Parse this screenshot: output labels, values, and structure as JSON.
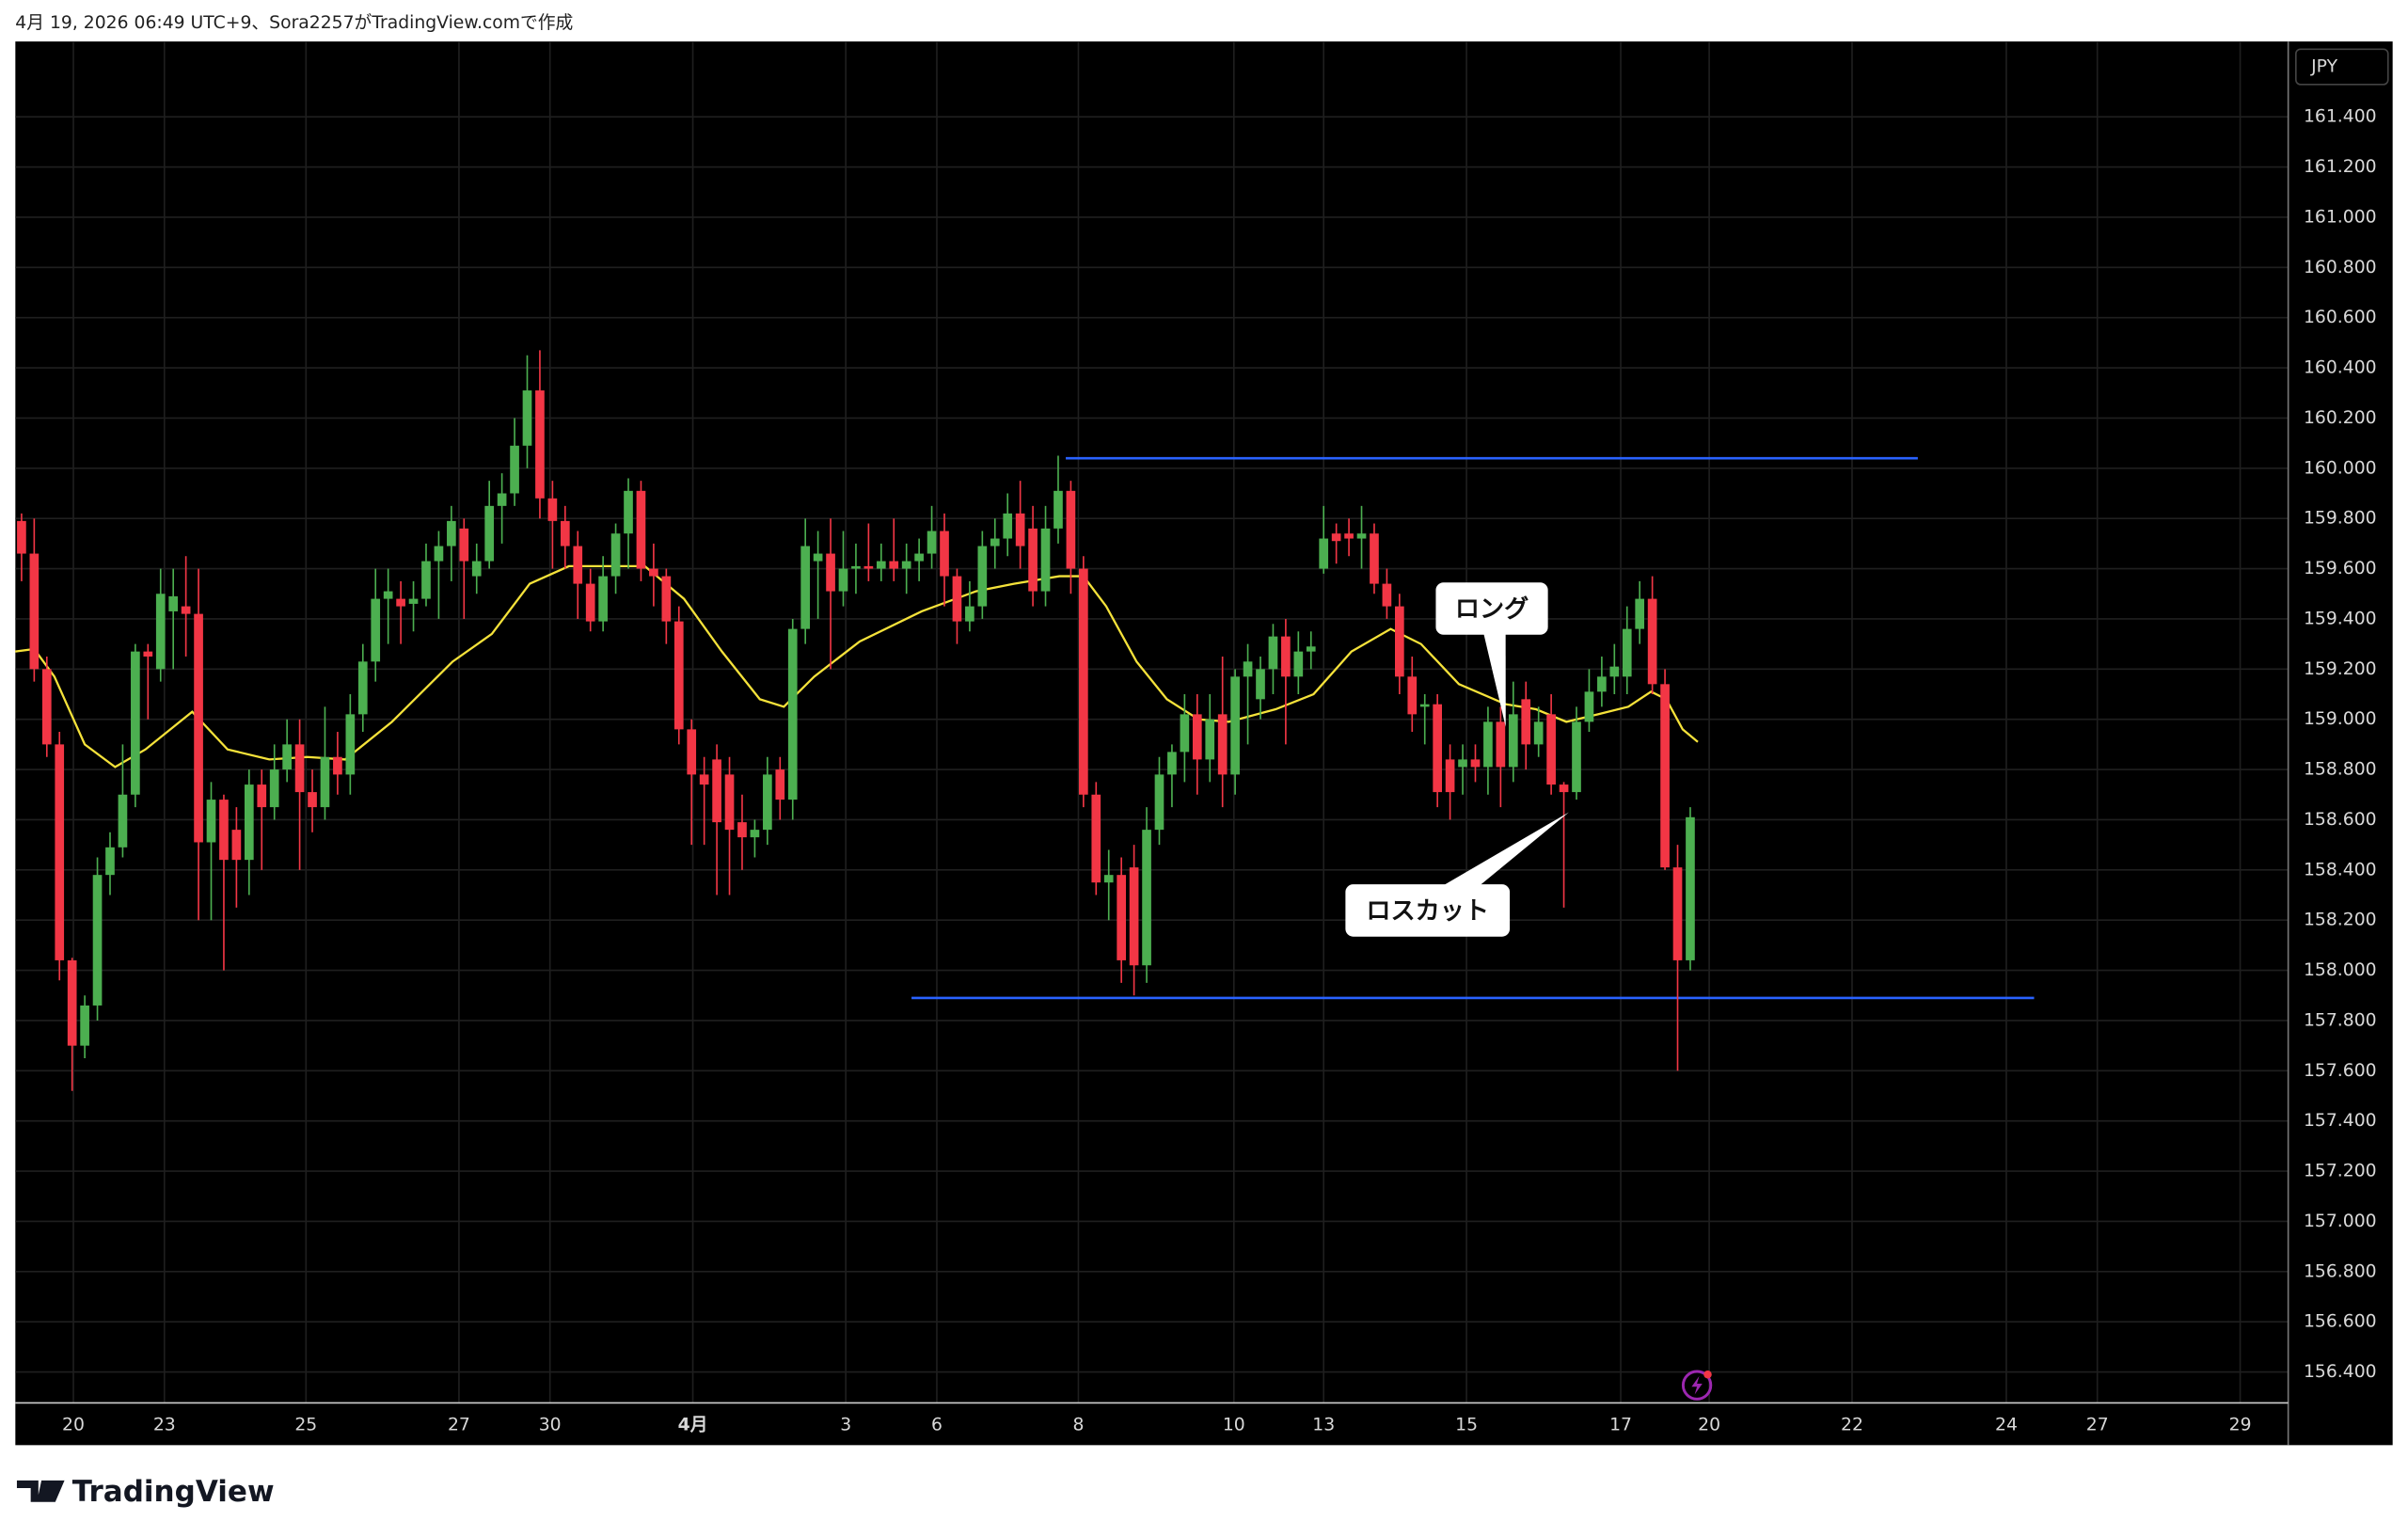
{
  "chart_data": {
    "type": "candlestick",
    "caption": "4月 19, 2026 06:49 UTC+9、Sora2257がTradingView.comで作成",
    "logo": "TradingView",
    "currency": "JPY",
    "up_color": "#4caf50",
    "down_color": "#f23645",
    "grid": true,
    "ylim": [
      156.28,
      161.7
    ],
    "yticks": [
      {
        "value": 156.4,
        "label": "156.400"
      },
      {
        "value": 156.6,
        "label": "156.600"
      },
      {
        "value": 156.8,
        "label": "156.800"
      },
      {
        "value": 157.0,
        "label": "157.000"
      },
      {
        "value": 157.2,
        "label": "157.200"
      },
      {
        "value": 157.4,
        "label": "157.400"
      },
      {
        "value": 157.6,
        "label": "157.600"
      },
      {
        "value": 157.8,
        "label": "157.800"
      },
      {
        "value": 158.0,
        "label": "158.000"
      },
      {
        "value": 158.2,
        "label": "158.200"
      },
      {
        "value": 158.4,
        "label": "158.400"
      },
      {
        "value": 158.6,
        "label": "158.600"
      },
      {
        "value": 158.8,
        "label": "158.800"
      },
      {
        "value": 159.0,
        "label": "159.000"
      },
      {
        "value": 159.2,
        "label": "159.200"
      },
      {
        "value": 159.4,
        "label": "159.400"
      },
      {
        "value": 159.6,
        "label": "159.600"
      },
      {
        "value": 159.8,
        "label": "159.800"
      },
      {
        "value": 160.0,
        "label": "160.000"
      },
      {
        "value": 160.2,
        "label": "160.200"
      },
      {
        "value": 160.4,
        "label": "160.400"
      },
      {
        "value": 160.6,
        "label": "160.600"
      },
      {
        "value": 160.8,
        "label": "160.800"
      },
      {
        "value": 161.0,
        "label": "161.000"
      },
      {
        "value": 161.2,
        "label": "161.200"
      },
      {
        "value": 161.4,
        "label": "161.400"
      }
    ],
    "xlim": [
      -0.49,
      179.3
    ],
    "xticks": [
      {
        "value": 4.1,
        "label": "20"
      },
      {
        "value": 11.3,
        "label": "23"
      },
      {
        "value": 22.5,
        "label": "25"
      },
      {
        "value": 34.6,
        "label": "27"
      },
      {
        "value": 41.8,
        "label": "30"
      },
      {
        "value": 53.1,
        "label": "4月"
      },
      {
        "value": 65.2,
        "label": "3"
      },
      {
        "value": 72.4,
        "label": "6"
      },
      {
        "value": 83.6,
        "label": "8"
      },
      {
        "value": 95.9,
        "label": "10"
      },
      {
        "value": 103.0,
        "label": "13"
      },
      {
        "value": 114.3,
        "label": "15"
      },
      {
        "value": 126.5,
        "label": "17"
      },
      {
        "value": 133.5,
        "label": "20"
      },
      {
        "value": 144.8,
        "label": "22"
      },
      {
        "value": 157.0,
        "label": "24"
      },
      {
        "value": 164.2,
        "label": "27"
      },
      {
        "value": 175.5,
        "label": "29"
      }
    ],
    "ohlc": [
      [
        159.79,
        159.82,
        159.55,
        159.66
      ],
      [
        159.66,
        159.8,
        159.15,
        159.2
      ],
      [
        159.2,
        159.25,
        158.85,
        158.9
      ],
      [
        158.9,
        158.95,
        157.96,
        158.04
      ],
      [
        158.04,
        158.05,
        157.52,
        157.7
      ],
      [
        157.7,
        157.9,
        157.65,
        157.86
      ],
      [
        157.86,
        158.45,
        157.8,
        158.38
      ],
      [
        158.38,
        158.55,
        158.3,
        158.49
      ],
      [
        158.49,
        158.9,
        158.45,
        158.7
      ],
      [
        158.7,
        159.3,
        158.65,
        159.27
      ],
      [
        159.27,
        159.3,
        159.0,
        159.25
      ],
      [
        159.2,
        159.6,
        159.15,
        159.5
      ],
      [
        159.43,
        159.6,
        159.2,
        159.49
      ],
      [
        159.45,
        159.65,
        159.25,
        159.42
      ],
      [
        159.42,
        159.6,
        158.2,
        158.51
      ],
      [
        158.51,
        158.75,
        158.2,
        158.68
      ],
      [
        158.68,
        158.7,
        158.0,
        158.44
      ],
      [
        158.56,
        158.65,
        158.25,
        158.44
      ],
      [
        158.44,
        158.8,
        158.3,
        158.74
      ],
      [
        158.74,
        158.8,
        158.4,
        158.65
      ],
      [
        158.65,
        158.9,
        158.6,
        158.8
      ],
      [
        158.8,
        159.0,
        158.75,
        158.9
      ],
      [
        158.9,
        159.0,
        158.4,
        158.71
      ],
      [
        158.71,
        158.8,
        158.55,
        158.65
      ],
      [
        158.65,
        159.05,
        158.6,
        158.85
      ],
      [
        158.85,
        158.95,
        158.7,
        158.78
      ],
      [
        158.78,
        159.1,
        158.7,
        159.02
      ],
      [
        159.02,
        159.3,
        158.95,
        159.23
      ],
      [
        159.23,
        159.6,
        159.15,
        159.48
      ],
      [
        159.48,
        159.6,
        159.3,
        159.51
      ],
      [
        159.48,
        159.55,
        159.3,
        159.45
      ],
      [
        159.46,
        159.55,
        159.35,
        159.48
      ],
      [
        159.48,
        159.7,
        159.45,
        159.63
      ],
      [
        159.63,
        159.75,
        159.4,
        159.69
      ],
      [
        159.69,
        159.85,
        159.55,
        159.79
      ],
      [
        159.76,
        159.8,
        159.4,
        159.63
      ],
      [
        159.57,
        159.7,
        159.5,
        159.63
      ],
      [
        159.63,
        159.95,
        159.6,
        159.85
      ],
      [
        159.85,
        159.98,
        159.7,
        159.9
      ],
      [
        159.9,
        160.2,
        159.85,
        160.09
      ],
      [
        160.09,
        160.45,
        160.0,
        160.31
      ],
      [
        160.31,
        160.47,
        159.8,
        159.88
      ],
      [
        159.88,
        159.95,
        159.6,
        159.79
      ],
      [
        159.79,
        159.85,
        159.6,
        159.69
      ],
      [
        159.69,
        159.75,
        159.4,
        159.54
      ],
      [
        159.54,
        159.6,
        159.35,
        159.39
      ],
      [
        159.39,
        159.65,
        159.35,
        159.57
      ],
      [
        159.57,
        159.78,
        159.5,
        159.74
      ],
      [
        159.74,
        159.96,
        159.6,
        159.91
      ],
      [
        159.91,
        159.95,
        159.55,
        159.6
      ],
      [
        159.6,
        159.7,
        159.45,
        159.57
      ],
      [
        159.57,
        159.6,
        159.3,
        159.39
      ],
      [
        159.39,
        159.45,
        158.9,
        158.96
      ],
      [
        158.96,
        159.0,
        158.5,
        158.78
      ],
      [
        158.78,
        158.85,
        158.5,
        158.74
      ],
      [
        158.84,
        158.9,
        158.3,
        158.59
      ],
      [
        158.78,
        158.85,
        158.3,
        158.56
      ],
      [
        158.59,
        158.7,
        158.4,
        158.53
      ],
      [
        158.53,
        158.6,
        158.45,
        158.56
      ],
      [
        158.56,
        158.85,
        158.5,
        158.78
      ],
      [
        158.8,
        158.85,
        158.6,
        158.68
      ],
      [
        158.68,
        159.4,
        158.6,
        159.36
      ],
      [
        159.36,
        159.8,
        159.3,
        159.69
      ],
      [
        159.63,
        159.75,
        159.4,
        159.66
      ],
      [
        159.66,
        159.8,
        159.2,
        159.51
      ],
      [
        159.51,
        159.75,
        159.45,
        159.6
      ],
      [
        159.6,
        159.7,
        159.5,
        159.61
      ],
      [
        159.61,
        159.78,
        159.55,
        159.6
      ],
      [
        159.6,
        159.7,
        159.55,
        159.63
      ],
      [
        159.63,
        159.8,
        159.55,
        159.6
      ],
      [
        159.6,
        159.7,
        159.5,
        159.63
      ],
      [
        159.63,
        159.72,
        159.55,
        159.66
      ],
      [
        159.66,
        159.85,
        159.6,
        159.75
      ],
      [
        159.75,
        159.82,
        159.45,
        159.57
      ],
      [
        159.57,
        159.6,
        159.3,
        159.39
      ],
      [
        159.39,
        159.55,
        159.35,
        159.45
      ],
      [
        159.45,
        159.75,
        159.4,
        159.69
      ],
      [
        159.69,
        159.8,
        159.6,
        159.72
      ],
      [
        159.72,
        159.9,
        159.65,
        159.82
      ],
      [
        159.82,
        159.95,
        159.6,
        159.69
      ],
      [
        159.76,
        159.85,
        159.45,
        159.51
      ],
      [
        159.51,
        159.85,
        159.45,
        159.76
      ],
      [
        159.76,
        160.05,
        159.7,
        159.91
      ],
      [
        159.91,
        159.95,
        159.5,
        159.6
      ],
      [
        159.6,
        159.65,
        158.65,
        158.7
      ],
      [
        158.7,
        158.75,
        158.3,
        158.35
      ],
      [
        158.35,
        158.48,
        158.2,
        158.38
      ],
      [
        158.38,
        158.45,
        157.95,
        158.04
      ],
      [
        158.41,
        158.5,
        157.9,
        158.02
      ],
      [
        158.02,
        158.65,
        157.95,
        158.56
      ],
      [
        158.56,
        158.85,
        158.5,
        158.78
      ],
      [
        158.78,
        158.9,
        158.65,
        158.87
      ],
      [
        158.87,
        159.1,
        158.75,
        159.02
      ],
      [
        159.02,
        159.1,
        158.7,
        158.84
      ],
      [
        158.84,
        159.1,
        158.75,
        159.0
      ],
      [
        159.02,
        159.25,
        158.65,
        158.78
      ],
      [
        158.78,
        159.2,
        158.7,
        159.17
      ],
      [
        159.17,
        159.3,
        158.9,
        159.23
      ],
      [
        159.08,
        159.25,
        159.0,
        159.2
      ],
      [
        159.2,
        159.38,
        159.1,
        159.33
      ],
      [
        159.33,
        159.4,
        158.9,
        159.17
      ],
      [
        159.17,
        159.35,
        159.1,
        159.27
      ],
      [
        159.27,
        159.35,
        159.2,
        159.29
      ],
      [
        159.6,
        159.85,
        159.58,
        159.72
      ],
      [
        159.74,
        159.78,
        159.62,
        159.71
      ],
      [
        159.74,
        159.8,
        159.65,
        159.72
      ],
      [
        159.72,
        159.85,
        159.6,
        159.74
      ],
      [
        159.74,
        159.78,
        159.5,
        159.54
      ],
      [
        159.54,
        159.6,
        159.4,
        159.45
      ],
      [
        159.45,
        159.5,
        159.1,
        159.17
      ],
      [
        159.17,
        159.25,
        158.95,
        159.02
      ],
      [
        159.05,
        159.1,
        158.9,
        159.06
      ],
      [
        159.06,
        159.1,
        158.65,
        158.71
      ],
      [
        158.84,
        158.9,
        158.6,
        158.71
      ],
      [
        158.81,
        158.9,
        158.7,
        158.84
      ],
      [
        158.84,
        158.9,
        158.75,
        158.81
      ],
      [
        158.81,
        159.05,
        158.7,
        158.99
      ],
      [
        158.99,
        159.05,
        158.65,
        158.81
      ],
      [
        158.81,
        159.15,
        158.75,
        159.02
      ],
      [
        159.08,
        159.15,
        158.8,
        158.9
      ],
      [
        158.9,
        159.05,
        158.85,
        158.99
      ],
      [
        159.02,
        159.1,
        158.7,
        158.74
      ],
      [
        158.74,
        158.75,
        158.25,
        158.71
      ],
      [
        158.71,
        159.05,
        158.68,
        158.99
      ],
      [
        158.99,
        159.2,
        158.95,
        159.11
      ],
      [
        159.11,
        159.25,
        159.05,
        159.17
      ],
      [
        159.17,
        159.3,
        159.1,
        159.21
      ],
      [
        159.17,
        159.45,
        159.1,
        159.36
      ],
      [
        159.36,
        159.55,
        159.3,
        159.48
      ],
      [
        159.48,
        159.57,
        159.1,
        159.14
      ],
      [
        159.14,
        159.2,
        158.4,
        158.41
      ],
      [
        158.41,
        158.5,
        157.6,
        158.04
      ],
      [
        158.04,
        158.65,
        158.0,
        158.61
      ]
    ],
    "ma": {
      "color": "#f5e23a",
      "x": [
        -0.5,
        1,
        2.6,
        5,
        7.4,
        9.8,
        13.5,
        16.3,
        19.6,
        22.6,
        25.6,
        29.3,
        34.1,
        37.2,
        40.2,
        43.3,
        46.3,
        49.3,
        52.4,
        55.4,
        58.4,
        60.3,
        62.7,
        66.3,
        71.2,
        75.5,
        78.5,
        82.1,
        84,
        85.8,
        88.2,
        90.6,
        93.1,
        95.5,
        99.2,
        102.2,
        105.2,
        108.3,
        110.7,
        113.7,
        117.4,
        119.8,
        122.2,
        124.7,
        127.1,
        128.9,
        130.1,
        131.4,
        132.6
      ],
      "values": [
        159.27,
        159.28,
        159.17,
        158.9,
        158.81,
        158.88,
        159.03,
        158.88,
        158.84,
        158.85,
        158.84,
        158.99,
        159.23,
        159.34,
        159.54,
        159.61,
        159.61,
        159.61,
        159.48,
        159.27,
        159.08,
        159.05,
        159.17,
        159.31,
        159.43,
        159.51,
        159.54,
        159.57,
        159.57,
        159.45,
        159.23,
        159.08,
        159.0,
        158.99,
        159.04,
        159.1,
        159.27,
        159.36,
        159.3,
        159.14,
        159.06,
        159.04,
        158.99,
        159.02,
        159.05,
        159.11,
        159.08,
        158.96,
        158.91
      ]
    },
    "hlines": [
      {
        "value": 160.04,
        "x": [
          82.6,
          150.0
        ],
        "color": "#2962ff"
      },
      {
        "value": 157.89,
        "x": [
          70.4,
          159.2
        ],
        "color": "#2962ff"
      }
    ],
    "annotations": [
      {
        "text": "ロング",
        "x": 117.4,
        "y": 158.97
      },
      {
        "text": "ロスカット",
        "x": 122.4,
        "y": 158.63
      }
    ]
  }
}
